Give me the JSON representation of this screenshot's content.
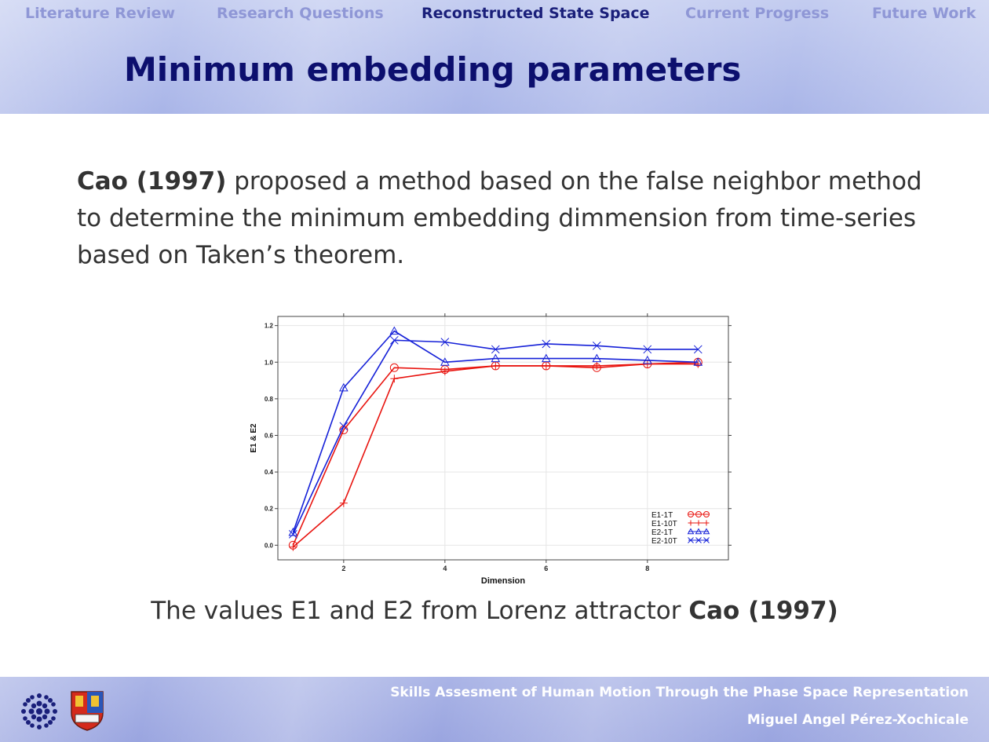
{
  "nav": {
    "items": [
      {
        "label": "Literature Review",
        "active": false
      },
      {
        "label": "Research Questions",
        "active": false
      },
      {
        "label": "Reconstructed State Space",
        "active": true
      },
      {
        "label": "Current Progress",
        "active": false
      },
      {
        "label": "Future Work",
        "active": false
      }
    ]
  },
  "slide": {
    "title": "Minimum embedding parameters",
    "body_bold": "Cao (1997)",
    "body_rest": " proposed a method based on the false neighbor method to determine the minimum embedding dimmension from time-series based on Taken’s theorem.",
    "caption_text": "The values E1 and E2 from Lorenz attractor ",
    "caption_bold": "Cao (1997)"
  },
  "footer": {
    "presentation_title": "Skills Assesment of Human Motion Through the Phase Space Representation",
    "author": "Miguel Angel Pérez-Xochicale",
    "logos": [
      "university-seal-logo",
      "university-crest-logo"
    ]
  },
  "colors": {
    "nav_inactive": "#8f97d6",
    "nav_active": "#1a1f7a",
    "title": "#0c0f6e",
    "e1": "#e8140f",
    "e2": "#1520d8"
  },
  "chart_data": {
    "type": "line",
    "xlabel": "Dimension",
    "ylabel": "E1 & E2",
    "xlim": [
      0.7,
      9.6
    ],
    "ylim": [
      -0.08,
      1.25
    ],
    "xticks": [
      2,
      4,
      6,
      8
    ],
    "yticks": [
      0.0,
      0.2,
      0.4,
      0.6,
      0.8,
      1.0,
      1.2
    ],
    "ytick_labels": [
      "0.0",
      "0.2",
      "0.4",
      "0.6",
      "0.8",
      "1.0",
      "1.2"
    ],
    "x": [
      1,
      2,
      3,
      4,
      5,
      6,
      7,
      8,
      9
    ],
    "legend_position": "bottom-right",
    "grid": true,
    "series": [
      {
        "name": "E1-1T",
        "color": "#e8140f",
        "marker": "circle",
        "values": [
          0.0,
          0.63,
          0.97,
          0.96,
          0.98,
          0.98,
          0.97,
          0.99,
          1.0
        ]
      },
      {
        "name": "E1-10T",
        "color": "#e8140f",
        "marker": "plus",
        "values": [
          -0.01,
          0.23,
          0.91,
          0.95,
          0.98,
          0.98,
          0.98,
          0.99,
          0.99
        ]
      },
      {
        "name": "E2-1T",
        "color": "#1520d8",
        "marker": "triangle",
        "values": [
          0.07,
          0.86,
          1.17,
          1.0,
          1.02,
          1.02,
          1.02,
          1.01,
          1.0
        ]
      },
      {
        "name": "E2-10T",
        "color": "#1520d8",
        "marker": "x",
        "values": [
          0.06,
          0.65,
          1.12,
          1.11,
          1.07,
          1.1,
          1.09,
          1.07,
          1.07
        ]
      }
    ]
  }
}
